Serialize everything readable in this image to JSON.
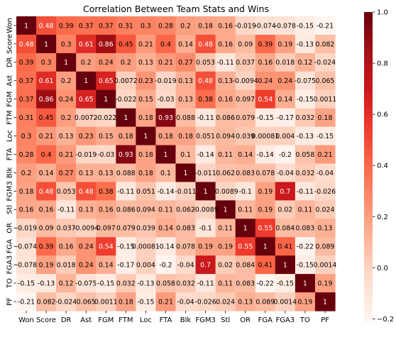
{
  "chart_data": {
    "type": "heatmap",
    "title": "Correlation Between Team Stats and Wins",
    "xlabel": "",
    "ylabel": "",
    "rows": [
      "Won",
      "Score",
      "DR",
      "Ast",
      "FGM",
      "FTM",
      "Loc",
      "FTA",
      "Blk",
      "FGM3",
      "Stl",
      "OR",
      "FGA",
      "FGA3",
      "TO",
      "PF"
    ],
    "columns": [
      "Won",
      "Score",
      "DR",
      "Ast",
      "FGM",
      "FTM",
      "Loc",
      "FTA",
      "Blk",
      "FGM3",
      "Stl",
      "OR",
      "FGA",
      "FGA3",
      "TO",
      "PF"
    ],
    "values": [
      [
        1,
        0.48,
        0.39,
        0.37,
        0.37,
        0.31,
        0.3,
        0.28,
        0.2,
        0.18,
        0.16,
        -0.019,
        -0.074,
        -0.078,
        -0.15,
        -0.21
      ],
      [
        0.48,
        1,
        0.3,
        0.61,
        0.86,
        0.45,
        0.21,
        0.4,
        0.14,
        0.48,
        0.16,
        0.09,
        0.39,
        0.19,
        -0.13,
        0.082
      ],
      [
        0.39,
        0.3,
        1,
        0.2,
        0.24,
        0.2,
        0.13,
        0.21,
        0.27,
        0.053,
        -0.11,
        0.037,
        0.16,
        0.018,
        0.12,
        -0.024
      ],
      [
        0.37,
        0.61,
        0.2,
        1,
        0.65,
        0.0072,
        0.23,
        -0.019,
        0.13,
        0.48,
        0.13,
        -0.0094,
        0.24,
        0.24,
        -0.075,
        0.065
      ],
      [
        0.37,
        0.86,
        0.24,
        0.65,
        1,
        -0.022,
        0.15,
        -0.03,
        0.13,
        0.38,
        0.16,
        0.097,
        0.54,
        0.14,
        -0.15,
        0.0011
      ],
      [
        0.31,
        0.45,
        0.2,
        0.0072,
        -0.022,
        1,
        0.18,
        0.93,
        0.088,
        -0.11,
        0.086,
        0.079,
        -0.15,
        -0.17,
        0.032,
        0.18
      ],
      [
        0.3,
        0.21,
        0.13,
        0.23,
        0.15,
        0.18,
        1,
        0.18,
        0.18,
        0.051,
        0.094,
        0.039,
        0.00081,
        0.004,
        -0.13,
        -0.15
      ],
      [
        0.28,
        0.4,
        0.21,
        -0.019,
        -0.03,
        0.93,
        0.18,
        1,
        0.1,
        -0.14,
        0.11,
        0.14,
        -0.14,
        -0.2,
        0.058,
        0.21
      ],
      [
        0.2,
        0.14,
        0.27,
        0.13,
        0.13,
        0.088,
        0.18,
        0.1,
        1,
        -0.011,
        0.062,
        0.083,
        0.078,
        -0.04,
        0.032,
        -0.04
      ],
      [
        0.18,
        0.48,
        0.053,
        0.48,
        0.38,
        -0.11,
        0.051,
        -0.14,
        -0.011,
        1,
        -0.0089,
        -0.1,
        0.19,
        0.7,
        -0.11,
        -0.026
      ],
      [
        0.16,
        0.16,
        -0.11,
        0.13,
        0.16,
        0.086,
        0.094,
        0.11,
        0.062,
        -0.0089,
        1,
        0.11,
        0.19,
        0.02,
        0.11,
        0.024
      ],
      [
        -0.019,
        0.09,
        0.037,
        -0.0094,
        0.097,
        0.079,
        0.039,
        0.14,
        0.083,
        -0.1,
        0.11,
        1,
        0.55,
        0.084,
        0.083,
        0.13
      ],
      [
        -0.074,
        0.39,
        0.16,
        0.24,
        0.54,
        -0.15,
        0.00081,
        -0.14,
        0.078,
        0.19,
        0.19,
        0.55,
        1,
        0.41,
        -0.22,
        0.089
      ],
      [
        -0.078,
        0.19,
        0.018,
        0.24,
        0.14,
        -0.17,
        0.004,
        -0.2,
        -0.04,
        0.7,
        0.02,
        0.084,
        0.41,
        1,
        -0.15,
        0.0014
      ],
      [
        -0.15,
        -0.13,
        0.12,
        -0.075,
        -0.15,
        0.032,
        -0.13,
        0.058,
        0.032,
        -0.11,
        0.11,
        0.083,
        -0.22,
        -0.15,
        1,
        0.19
      ],
      [
        -0.21,
        0.082,
        -0.024,
        0.065,
        0.0011,
        0.18,
        -0.15,
        0.21,
        -0.04,
        -0.026,
        0.024,
        0.13,
        0.089,
        0.0014,
        0.19,
        1
      ]
    ],
    "cell_labels": [
      [
        "1",
        "0.48",
        "0.39",
        "0.37",
        "0.37",
        "0.31",
        "0.3",
        "0.28",
        "0.2",
        "0.18",
        "0.16",
        "-0.019",
        "-0.074",
        "-0.078",
        "-0.15",
        "-0.21"
      ],
      [
        "0.48",
        "1",
        "0.3",
        "0.61",
        "0.86",
        "0.45",
        "0.21",
        "0.4",
        "0.14",
        "0.48",
        "0.16",
        "0.09",
        "0.39",
        "0.19",
        "-0.13",
        "0.082"
      ],
      [
        "0.39",
        "0.3",
        "1",
        "0.2",
        "0.24",
        "0.2",
        "0.13",
        "0.21",
        "0.27",
        "0.053",
        "-0.11",
        "0.037",
        "0.16",
        "0.018",
        "0.12",
        "-0.024"
      ],
      [
        "0.37",
        "0.61",
        "0.2",
        "1",
        "0.65",
        "0.0072",
        "0.23",
        "-0.019",
        "0.13",
        "0.48",
        "0.13",
        "-0.0094",
        "0.24",
        "0.24",
        "-0.075",
        "0.065"
      ],
      [
        "0.37",
        "0.86",
        "0.24",
        "0.65",
        "1",
        "-0.022",
        "0.15",
        "-0.03",
        "0.13",
        "0.38",
        "0.16",
        "0.097",
        "0.54",
        "0.14",
        "-0.15",
        "0.0011"
      ],
      [
        "0.31",
        "0.45",
        "0.2",
        "0.0072",
        "-0.022",
        "1",
        "0.18",
        "0.93",
        "0.088",
        "-0.11",
        "0.086",
        "0.079",
        "-0.15",
        "-0.17",
        "0.032",
        "0.18"
      ],
      [
        "0.3",
        "0.21",
        "0.13",
        "0.23",
        "0.15",
        "0.18",
        "1",
        "0.18",
        "0.18",
        "0.051",
        "0.094",
        "0.039",
        "0.00081",
        "0.004",
        "-0.13",
        "-0.15"
      ],
      [
        "0.28",
        "0.4",
        "0.21",
        "-0.019",
        "-0.03",
        "0.93",
        "0.18",
        "1",
        "0.1",
        "-0.14",
        "0.11",
        "0.14",
        "-0.14",
        "-0.2",
        "0.058",
        "0.21"
      ],
      [
        "0.2",
        "0.14",
        "0.27",
        "0.13",
        "0.13",
        "0.088",
        "0.18",
        "0.1",
        "1",
        "-0.011",
        "0.062",
        "0.083",
        "0.078",
        "-0.04",
        "0.032",
        "-0.04"
      ],
      [
        "0.18",
        "0.48",
        "0.053",
        "0.48",
        "0.38",
        "-0.11",
        "0.051",
        "-0.14",
        "-0.011",
        "1",
        "-0.0089",
        "-0.1",
        "0.19",
        "0.7",
        "-0.11",
        "-0.026"
      ],
      [
        "0.16",
        "0.16",
        "-0.11",
        "0.13",
        "0.16",
        "0.086",
        "0.094",
        "0.11",
        "0.062",
        "-0.0089",
        "1",
        "0.11",
        "0.19",
        "0.02",
        "0.11",
        "0.024"
      ],
      [
        "-0.019",
        "0.09",
        "0.037",
        "-0.0094",
        "0.097",
        "0.079",
        "0.039",
        "0.14",
        "0.083",
        "-0.1",
        "0.11",
        "1",
        "0.55",
        "0.084",
        "0.083",
        "0.13"
      ],
      [
        "-0.074",
        "0.39",
        "0.16",
        "0.24",
        "0.54",
        "-0.15",
        "0.00081",
        "-0.14",
        "0.078",
        "0.19",
        "0.19",
        "0.55",
        "1",
        "0.41",
        "-0.22",
        "0.089"
      ],
      [
        "-0.078",
        "0.19",
        "0.018",
        "0.24",
        "0.14",
        "-0.17",
        "0.004",
        "-0.2",
        "-0.04",
        "0.7",
        "0.02",
        "0.084",
        "0.41",
        "1",
        "-0.15",
        "0.0014"
      ],
      [
        "-0.15",
        "-0.13",
        "0.12",
        "-0.075",
        "-0.15",
        "0.032",
        "-0.13",
        "0.058",
        "0.032",
        "-0.11",
        "0.11",
        "0.083",
        "-0.22",
        "-0.15",
        "1",
        "0.19"
      ],
      [
        "-0.21",
        "0.082",
        "-0.024",
        "0.065",
        "0.0011",
        "0.18",
        "-0.15",
        "0.21",
        "-0.04",
        "-0.026",
        "0.024",
        "0.13",
        "0.089",
        "0.0014",
        "0.19",
        "1"
      ]
    ],
    "colormap": "Reds",
    "color_range": [
      -0.21,
      1
    ],
    "colorbar_ticks": [
      -0.2,
      0.0,
      0.2,
      0.4,
      0.6,
      0.8,
      1.0
    ],
    "colorbar_tick_labels": [
      "−0.2",
      "0.0",
      "0.2",
      "0.4",
      "0.6",
      "0.8",
      "1.0"
    ],
    "legend": "colorbar-right",
    "grid": false
  }
}
